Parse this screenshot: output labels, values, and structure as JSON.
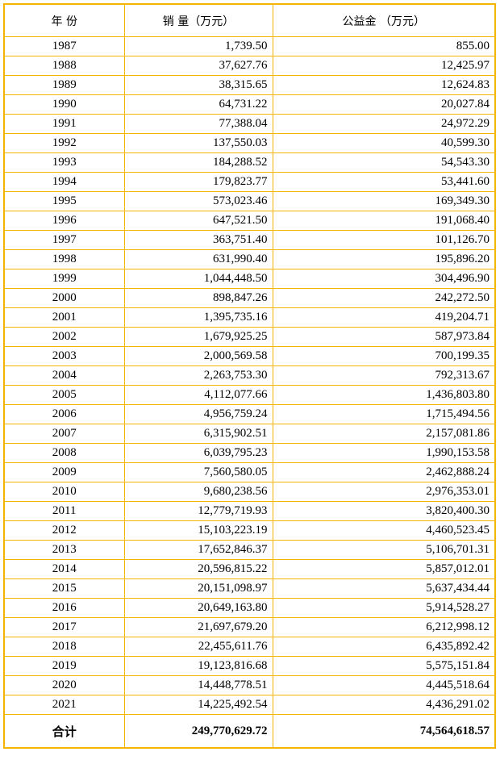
{
  "table": {
    "header": [
      "年 份",
      "销 量（万元）",
      "公益金 （万元）"
    ],
    "rows": [
      [
        "1987",
        "1,739.50",
        "855.00"
      ],
      [
        "1988",
        "37,627.76",
        "12,425.97"
      ],
      [
        "1989",
        "38,315.65",
        "12,624.83"
      ],
      [
        "1990",
        "64,731.22",
        "20,027.84"
      ],
      [
        "1991",
        "77,388.04",
        "24,972.29"
      ],
      [
        "1992",
        "137,550.03",
        "40,599.30"
      ],
      [
        "1993",
        "184,288.52",
        "54,543.30"
      ],
      [
        "1994",
        "179,823.77",
        "53,441.60"
      ],
      [
        "1995",
        "573,023.46",
        "169,349.30"
      ],
      [
        "1996",
        "647,521.50",
        "191,068.40"
      ],
      [
        "1997",
        "363,751.40",
        "101,126.70"
      ],
      [
        "1998",
        "631,990.40",
        "195,896.20"
      ],
      [
        "1999",
        "1,044,448.50",
        "304,496.90"
      ],
      [
        "2000",
        "898,847.26",
        "242,272.50"
      ],
      [
        "2001",
        "1,395,735.16",
        "419,204.71"
      ],
      [
        "2002",
        "1,679,925.25",
        "587,973.84"
      ],
      [
        "2003",
        "2,000,569.58",
        "700,199.35"
      ],
      [
        "2004",
        "2,263,753.30",
        "792,313.67"
      ],
      [
        "2005",
        "4,112,077.66",
        "1,436,803.80"
      ],
      [
        "2006",
        "4,956,759.24",
        "1,715,494.56"
      ],
      [
        "2007",
        "6,315,902.51",
        "2,157,081.86"
      ],
      [
        "2008",
        "6,039,795.23",
        "1,990,153.58"
      ],
      [
        "2009",
        "7,560,580.05",
        "2,462,888.24"
      ],
      [
        "2010",
        "9,680,238.56",
        "2,976,353.01"
      ],
      [
        "2011",
        "12,779,719.93",
        "3,820,400.30"
      ],
      [
        "2012",
        "15,103,223.19",
        "4,460,523.45"
      ],
      [
        "2013",
        "17,652,846.37",
        "5,106,701.31"
      ],
      [
        "2014",
        "20,596,815.22",
        "5,857,012.01"
      ],
      [
        "2015",
        "20,151,098.97",
        "5,637,434.44"
      ],
      [
        "2016",
        "20,649,163.80",
        "5,914,528.27"
      ],
      [
        "2017",
        "21,697,679.20",
        "6,212,998.12"
      ],
      [
        "2018",
        "22,455,611.76",
        "6,435,892.42"
      ],
      [
        "2019",
        "19,123,816.68",
        "5,575,151.84"
      ],
      [
        "2020",
        "14,448,778.51",
        "4,445,518.64"
      ],
      [
        "2021",
        "14,225,492.54",
        "4,436,291.02"
      ]
    ],
    "total": [
      "合计",
      "249,770,629.72",
      "74,564,618.57"
    ]
  }
}
